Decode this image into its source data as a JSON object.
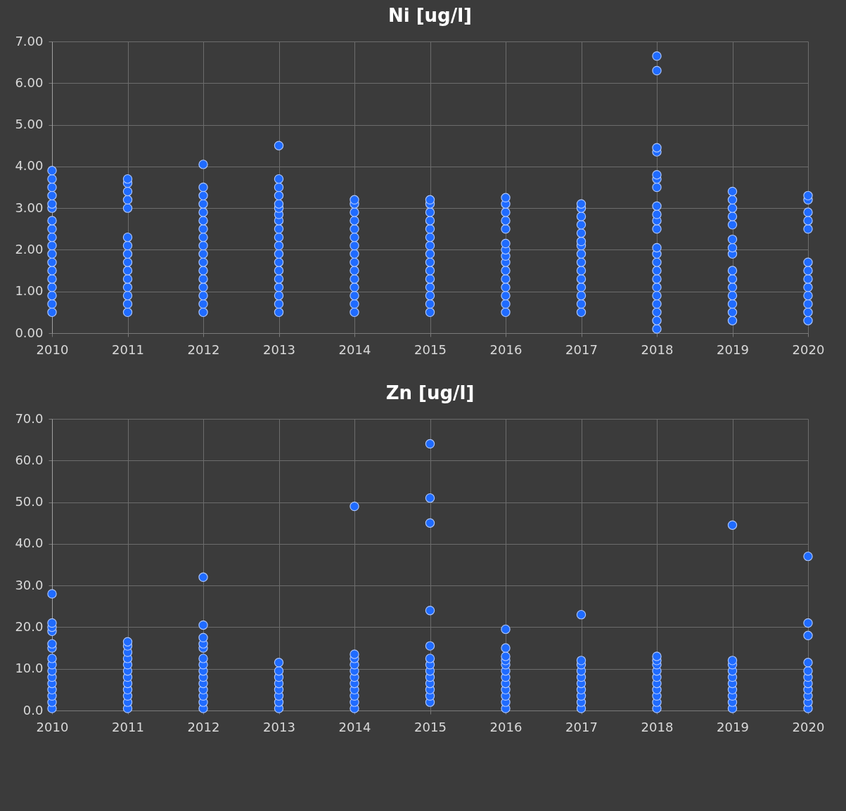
{
  "chart_data": [
    {
      "type": "scatter",
      "title": "Ni [ug/l]",
      "xlim": [
        2010,
        2020
      ],
      "xticks": [
        2010,
        2011,
        2012,
        2013,
        2014,
        2015,
        2016,
        2017,
        2018,
        2019,
        2020
      ],
      "ylim": [
        0,
        7
      ],
      "yticks": [
        {
          "value": 0,
          "label": "0.00"
        },
        {
          "value": 1,
          "label": "1.00"
        },
        {
          "value": 2,
          "label": "2.00"
        },
        {
          "value": 3,
          "label": "3.00"
        },
        {
          "value": 4,
          "label": "4.00"
        },
        {
          "value": 5,
          "label": "5.00"
        },
        {
          "value": 6,
          "label": "6.00"
        },
        {
          "value": 7,
          "label": "7.00"
        }
      ],
      "grid": true,
      "marker": "circle",
      "series": [
        {
          "color": "#1f6bff",
          "x": [
            2010,
            2010,
            2010,
            2010,
            2010,
            2010,
            2010,
            2010,
            2010,
            2010,
            2010,
            2010,
            2010,
            2010,
            2010,
            2010,
            2010,
            2010
          ],
          "values": [
            0.5,
            0.7,
            0.9,
            1.1,
            1.3,
            1.5,
            1.7,
            1.9,
            2.1,
            2.3,
            2.5,
            2.7,
            3.0,
            3.1,
            3.3,
            3.5,
            3.7,
            3.9
          ]
        },
        {
          "color": "#1f6bff",
          "x": [
            2011,
            2011,
            2011,
            2011,
            2011,
            2011,
            2011,
            2011,
            2011,
            2011,
            2011,
            2011,
            2011,
            2011,
            2011
          ],
          "values": [
            0.5,
            0.7,
            0.9,
            1.1,
            1.3,
            1.5,
            1.7,
            1.9,
            2.1,
            2.3,
            3.0,
            3.2,
            3.4,
            3.6,
            3.7
          ]
        },
        {
          "color": "#1f6bff",
          "x": [
            2012,
            2012,
            2012,
            2012,
            2012,
            2012,
            2012,
            2012,
            2012,
            2012,
            2012,
            2012,
            2012,
            2012,
            2012,
            2012,
            2012
          ],
          "values": [
            0.5,
            0.7,
            0.9,
            1.1,
            1.3,
            1.5,
            1.7,
            1.9,
            2.1,
            2.3,
            2.5,
            2.7,
            2.9,
            3.1,
            3.3,
            3.5,
            4.05
          ]
        },
        {
          "color": "#1f6bff",
          "x": [
            2013,
            2013,
            2013,
            2013,
            2013,
            2013,
            2013,
            2013,
            2013,
            2013,
            2013,
            2013,
            2013,
            2013,
            2013,
            2013,
            2013,
            2013,
            2013
          ],
          "values": [
            0.5,
            0.7,
            0.9,
            1.1,
            1.3,
            1.5,
            1.7,
            1.9,
            2.1,
            2.3,
            2.5,
            2.7,
            2.85,
            3.0,
            3.1,
            3.3,
            3.5,
            3.7,
            4.5
          ]
        },
        {
          "color": "#1f6bff",
          "x": [
            2014,
            2014,
            2014,
            2014,
            2014,
            2014,
            2014,
            2014,
            2014,
            2014,
            2014,
            2014,
            2014,
            2014,
            2014
          ],
          "values": [
            0.5,
            0.7,
            0.9,
            1.1,
            1.3,
            1.5,
            1.7,
            1.9,
            2.1,
            2.3,
            2.5,
            2.7,
            2.9,
            3.1,
            3.2
          ]
        },
        {
          "color": "#1f6bff",
          "x": [
            2015,
            2015,
            2015,
            2015,
            2015,
            2015,
            2015,
            2015,
            2015,
            2015,
            2015,
            2015,
            2015,
            2015,
            2015
          ],
          "values": [
            0.5,
            0.7,
            0.9,
            1.1,
            1.3,
            1.5,
            1.7,
            1.9,
            2.1,
            2.3,
            2.5,
            2.7,
            2.9,
            3.1,
            3.2
          ]
        },
        {
          "color": "#1f6bff",
          "x": [
            2016,
            2016,
            2016,
            2016,
            2016,
            2016,
            2016,
            2016,
            2016,
            2016,
            2016,
            2016,
            2016,
            2016,
            2016
          ],
          "values": [
            0.5,
            0.7,
            0.9,
            1.1,
            1.3,
            1.5,
            1.7,
            1.85,
            2.0,
            2.15,
            2.5,
            2.7,
            2.9,
            3.1,
            3.25
          ]
        },
        {
          "color": "#1f6bff",
          "x": [
            2017,
            2017,
            2017,
            2017,
            2017,
            2017,
            2017,
            2017,
            2017,
            2017,
            2017,
            2017,
            2017,
            2017,
            2017
          ],
          "values": [
            0.5,
            0.7,
            0.9,
            1.1,
            1.3,
            1.5,
            1.7,
            1.9,
            2.1,
            2.2,
            2.4,
            2.6,
            2.8,
            3.0,
            3.1
          ]
        },
        {
          "color": "#1f6bff",
          "x": [
            2018,
            2018,
            2018,
            2018,
            2018,
            2018,
            2018,
            2018,
            2018,
            2018,
            2018,
            2018,
            2018,
            2018,
            2018,
            2018,
            2018,
            2018,
            2018,
            2018,
            2018,
            2018
          ],
          "values": [
            0.1,
            0.3,
            0.5,
            0.7,
            0.9,
            1.1,
            1.3,
            1.5,
            1.7,
            1.9,
            2.05,
            2.5,
            2.7,
            2.85,
            3.05,
            3.5,
            3.7,
            3.8,
            4.35,
            4.45,
            6.3,
            6.65
          ]
        },
        {
          "color": "#1f6bff",
          "x": [
            2019,
            2019,
            2019,
            2019,
            2019,
            2019,
            2019,
            2019,
            2019,
            2019,
            2019,
            2019,
            2019,
            2019,
            2019
          ],
          "values": [
            0.3,
            0.5,
            0.7,
            0.9,
            1.1,
            1.3,
            1.5,
            1.9,
            2.05,
            2.25,
            2.6,
            2.8,
            3.0,
            3.2,
            3.4
          ]
        },
        {
          "color": "#1f6bff",
          "x": [
            2020,
            2020,
            2020,
            2020,
            2020,
            2020,
            2020,
            2020,
            2020,
            2020,
            2020,
            2020,
            2020
          ],
          "values": [
            0.3,
            0.5,
            0.7,
            0.9,
            1.1,
            1.3,
            1.5,
            1.7,
            2.5,
            2.7,
            2.9,
            3.2,
            3.3
          ]
        }
      ]
    },
    {
      "type": "scatter",
      "title": "Zn [ug/l]",
      "xlim": [
        2010,
        2020
      ],
      "xticks": [
        2010,
        2011,
        2012,
        2013,
        2014,
        2015,
        2016,
        2017,
        2018,
        2019,
        2020
      ],
      "ylim": [
        0,
        70
      ],
      "yticks": [
        {
          "value": 0,
          "label": "0.0"
        },
        {
          "value": 10,
          "label": "10.0"
        },
        {
          "value": 20,
          "label": "20.0"
        },
        {
          "value": 30,
          "label": "30.0"
        },
        {
          "value": 40,
          "label": "40.0"
        },
        {
          "value": 50,
          "label": "50.0"
        },
        {
          "value": 60,
          "label": "60.0"
        },
        {
          "value": 70,
          "label": "70.0"
        }
      ],
      "grid": true,
      "marker": "circle",
      "series": [
        {
          "color": "#1f6bff",
          "x": [
            2010,
            2010,
            2010,
            2010,
            2010,
            2010,
            2010,
            2010,
            2010,
            2010,
            2010,
            2010,
            2010,
            2010,
            2010
          ],
          "values": [
            0.5,
            2,
            3.5,
            5,
            6.5,
            8,
            9.5,
            11,
            12.5,
            15,
            16,
            19,
            20,
            21,
            28
          ]
        },
        {
          "color": "#1f6bff",
          "x": [
            2011,
            2011,
            2011,
            2011,
            2011,
            2011,
            2011,
            2011,
            2011,
            2011,
            2011,
            2011
          ],
          "values": [
            0.5,
            2,
            3.5,
            5,
            6.5,
            8,
            9.5,
            11,
            12.5,
            14,
            15.5,
            16.5
          ]
        },
        {
          "color": "#1f6bff",
          "x": [
            2012,
            2012,
            2012,
            2012,
            2012,
            2012,
            2012,
            2012,
            2012,
            2012,
            2012,
            2012,
            2012,
            2012
          ],
          "values": [
            0.5,
            2,
            3.5,
            5,
            6.5,
            8,
            9.5,
            11,
            12.5,
            15,
            16,
            17.5,
            20.5,
            32
          ]
        },
        {
          "color": "#1f6bff",
          "x": [
            2013,
            2013,
            2013,
            2013,
            2013,
            2013,
            2013,
            2013
          ],
          "values": [
            0.5,
            2,
            3.5,
            5,
            6.5,
            8,
            9.5,
            11.5
          ]
        },
        {
          "color": "#1f6bff",
          "x": [
            2014,
            2014,
            2014,
            2014,
            2014,
            2014,
            2014,
            2014,
            2014,
            2014,
            2014
          ],
          "values": [
            0.5,
            2,
            3.5,
            5,
            6.5,
            8,
            9.5,
            11,
            12.5,
            13.5,
            49
          ]
        },
        {
          "color": "#1f6bff",
          "x": [
            2015,
            2015,
            2015,
            2015,
            2015,
            2015,
            2015,
            2015,
            2015,
            2015,
            2015,
            2015,
            2015
          ],
          "values": [
            2,
            3.5,
            5,
            6.5,
            8,
            9.5,
            11,
            12.5,
            15.5,
            24,
            45,
            51,
            64
          ]
        },
        {
          "color": "#1f6bff",
          "x": [
            2016,
            2016,
            2016,
            2016,
            2016,
            2016,
            2016,
            2016,
            2016,
            2016,
            2016,
            2016
          ],
          "values": [
            0.5,
            2,
            3.5,
            5,
            6.5,
            8,
            9.5,
            11,
            12,
            13,
            15,
            19.5
          ]
        },
        {
          "color": "#1f6bff",
          "x": [
            2017,
            2017,
            2017,
            2017,
            2017,
            2017,
            2017,
            2017,
            2017,
            2017
          ],
          "values": [
            0.5,
            2,
            3.5,
            5,
            6.5,
            8,
            9.5,
            11,
            12,
            23
          ]
        },
        {
          "color": "#1f6bff",
          "x": [
            2018,
            2018,
            2018,
            2018,
            2018,
            2018,
            2018,
            2018,
            2018,
            2018
          ],
          "values": [
            0.5,
            2,
            3.5,
            5,
            6.5,
            8,
            9.5,
            11,
            12,
            13
          ]
        },
        {
          "color": "#1f6bff",
          "x": [
            2019,
            2019,
            2019,
            2019,
            2019,
            2019,
            2019,
            2019,
            2019,
            2019
          ],
          "values": [
            0.5,
            2,
            3.5,
            5,
            6.5,
            8,
            9.5,
            11,
            12,
            44.5
          ]
        },
        {
          "color": "#1f6bff",
          "x": [
            2020,
            2020,
            2020,
            2020,
            2020,
            2020,
            2020,
            2020,
            2020,
            2020,
            2020
          ],
          "values": [
            0.5,
            2,
            3.5,
            5,
            6.5,
            8,
            9.5,
            11.5,
            18,
            21,
            37
          ]
        }
      ]
    }
  ]
}
